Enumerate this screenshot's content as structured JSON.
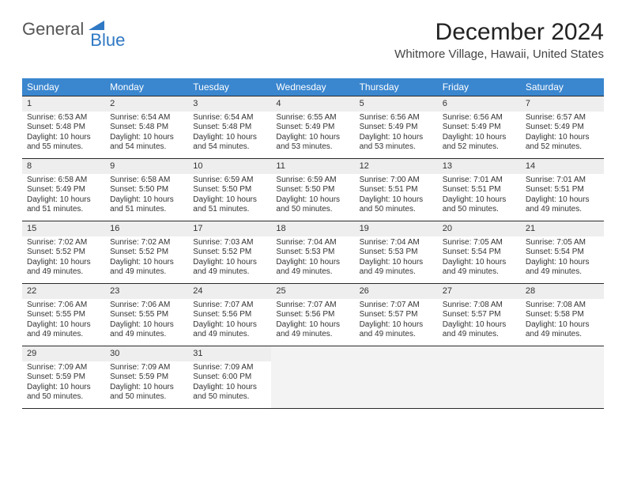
{
  "logo": {
    "text1": "General",
    "text2": "Blue"
  },
  "title": "December 2024",
  "subtitle": "Whitmore Village, Hawaii, United States",
  "colors": {
    "header_bg": "#3a86cf",
    "header_text": "#ffffff",
    "daynum_bg": "#eeeeee",
    "border": "#2a2a2a",
    "logo_blue": "#2f78c4"
  },
  "day_headers": [
    "Sunday",
    "Monday",
    "Tuesday",
    "Wednesday",
    "Thursday",
    "Friday",
    "Saturday"
  ],
  "weeks": [
    [
      {
        "n": "1",
        "sr": "6:53 AM",
        "ss": "5:48 PM",
        "dh": "10",
        "dm": "55"
      },
      {
        "n": "2",
        "sr": "6:54 AM",
        "ss": "5:48 PM",
        "dh": "10",
        "dm": "54"
      },
      {
        "n": "3",
        "sr": "6:54 AM",
        "ss": "5:48 PM",
        "dh": "10",
        "dm": "54"
      },
      {
        "n": "4",
        "sr": "6:55 AM",
        "ss": "5:49 PM",
        "dh": "10",
        "dm": "53"
      },
      {
        "n": "5",
        "sr": "6:56 AM",
        "ss": "5:49 PM",
        "dh": "10",
        "dm": "53"
      },
      {
        "n": "6",
        "sr": "6:56 AM",
        "ss": "5:49 PM",
        "dh": "10",
        "dm": "52"
      },
      {
        "n": "7",
        "sr": "6:57 AM",
        "ss": "5:49 PM",
        "dh": "10",
        "dm": "52"
      }
    ],
    [
      {
        "n": "8",
        "sr": "6:58 AM",
        "ss": "5:49 PM",
        "dh": "10",
        "dm": "51"
      },
      {
        "n": "9",
        "sr": "6:58 AM",
        "ss": "5:50 PM",
        "dh": "10",
        "dm": "51"
      },
      {
        "n": "10",
        "sr": "6:59 AM",
        "ss": "5:50 PM",
        "dh": "10",
        "dm": "51"
      },
      {
        "n": "11",
        "sr": "6:59 AM",
        "ss": "5:50 PM",
        "dh": "10",
        "dm": "50"
      },
      {
        "n": "12",
        "sr": "7:00 AM",
        "ss": "5:51 PM",
        "dh": "10",
        "dm": "50"
      },
      {
        "n": "13",
        "sr": "7:01 AM",
        "ss": "5:51 PM",
        "dh": "10",
        "dm": "50"
      },
      {
        "n": "14",
        "sr": "7:01 AM",
        "ss": "5:51 PM",
        "dh": "10",
        "dm": "49"
      }
    ],
    [
      {
        "n": "15",
        "sr": "7:02 AM",
        "ss": "5:52 PM",
        "dh": "10",
        "dm": "49"
      },
      {
        "n": "16",
        "sr": "7:02 AM",
        "ss": "5:52 PM",
        "dh": "10",
        "dm": "49"
      },
      {
        "n": "17",
        "sr": "7:03 AM",
        "ss": "5:52 PM",
        "dh": "10",
        "dm": "49"
      },
      {
        "n": "18",
        "sr": "7:04 AM",
        "ss": "5:53 PM",
        "dh": "10",
        "dm": "49"
      },
      {
        "n": "19",
        "sr": "7:04 AM",
        "ss": "5:53 PM",
        "dh": "10",
        "dm": "49"
      },
      {
        "n": "20",
        "sr": "7:05 AM",
        "ss": "5:54 PM",
        "dh": "10",
        "dm": "49"
      },
      {
        "n": "21",
        "sr": "7:05 AM",
        "ss": "5:54 PM",
        "dh": "10",
        "dm": "49"
      }
    ],
    [
      {
        "n": "22",
        "sr": "7:06 AM",
        "ss": "5:55 PM",
        "dh": "10",
        "dm": "49"
      },
      {
        "n": "23",
        "sr": "7:06 AM",
        "ss": "5:55 PM",
        "dh": "10",
        "dm": "49"
      },
      {
        "n": "24",
        "sr": "7:07 AM",
        "ss": "5:56 PM",
        "dh": "10",
        "dm": "49"
      },
      {
        "n": "25",
        "sr": "7:07 AM",
        "ss": "5:56 PM",
        "dh": "10",
        "dm": "49"
      },
      {
        "n": "26",
        "sr": "7:07 AM",
        "ss": "5:57 PM",
        "dh": "10",
        "dm": "49"
      },
      {
        "n": "27",
        "sr": "7:08 AM",
        "ss": "5:57 PM",
        "dh": "10",
        "dm": "49"
      },
      {
        "n": "28",
        "sr": "7:08 AM",
        "ss": "5:58 PM",
        "dh": "10",
        "dm": "49"
      }
    ],
    [
      {
        "n": "29",
        "sr": "7:09 AM",
        "ss": "5:59 PM",
        "dh": "10",
        "dm": "50"
      },
      {
        "n": "30",
        "sr": "7:09 AM",
        "ss": "5:59 PM",
        "dh": "10",
        "dm": "50"
      },
      {
        "n": "31",
        "sr": "7:09 AM",
        "ss": "6:00 PM",
        "dh": "10",
        "dm": "50"
      },
      {
        "empty": true
      },
      {
        "empty": true
      },
      {
        "empty": true
      },
      {
        "empty": true
      }
    ]
  ],
  "labels": {
    "sunrise": "Sunrise:",
    "sunset": "Sunset:",
    "daylight": "Daylight:",
    "hours": "hours",
    "and": "and",
    "minutes": "minutes."
  }
}
